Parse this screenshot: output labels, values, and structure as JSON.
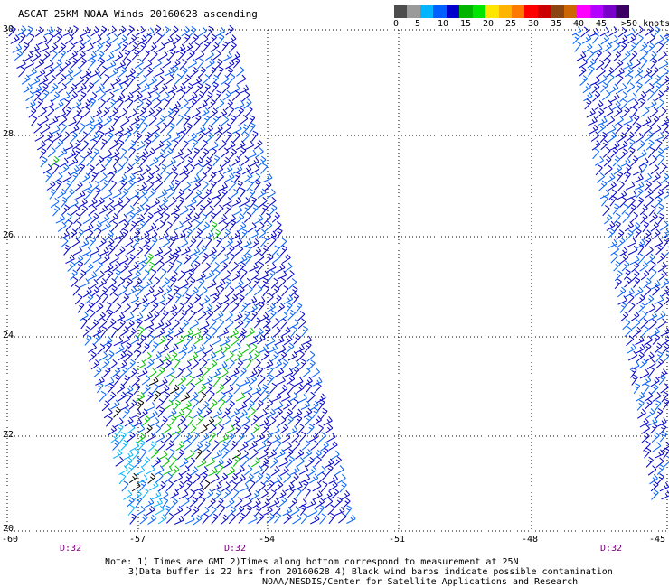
{
  "title": "ASCAT 25KM NOAA Winds 20160628 ascending",
  "legend": {
    "colors": [
      "#4d4d4d",
      "#9a9a9a",
      "#00b4ff",
      "#0060ff",
      "#0000cc",
      "#00b400",
      "#00e600",
      "#ffe600",
      "#ffb400",
      "#ff7800",
      "#ff0000",
      "#cc0000",
      "#8b4513",
      "#cc6600",
      "#ff00ff",
      "#b400ff",
      "#7800c8",
      "#3c0064"
    ],
    "labels": [
      "0",
      "5",
      "10",
      "15",
      "20",
      "25",
      "30",
      "35",
      "40",
      "45",
      ">50 knots"
    ]
  },
  "axes": {
    "lat_labels": [
      "30",
      "28",
      "26",
      "24",
      "22",
      "20"
    ],
    "lon_labels": [
      "-60",
      "-57",
      "-54",
      "-51",
      "-48",
      "-45"
    ]
  },
  "times": [
    "D:32",
    "D:32",
    "D:32"
  ],
  "notes": [
    "Note: 1) Times are GMT 2)Times along bottom correspond to measurement at 25N",
    "3)Data buffer is 22 hrs from 20160628 4) Black wind barbs indicate possible contamination",
    "NOAA/NESDIS/Center for Satellite Applications and Research"
  ],
  "colors": {
    "barb_main": "#0000cc",
    "barb_alt": "#0060ff",
    "barb_light": "#00b4ff",
    "barb_green": "#00c000",
    "barb_black": "#000000"
  }
}
